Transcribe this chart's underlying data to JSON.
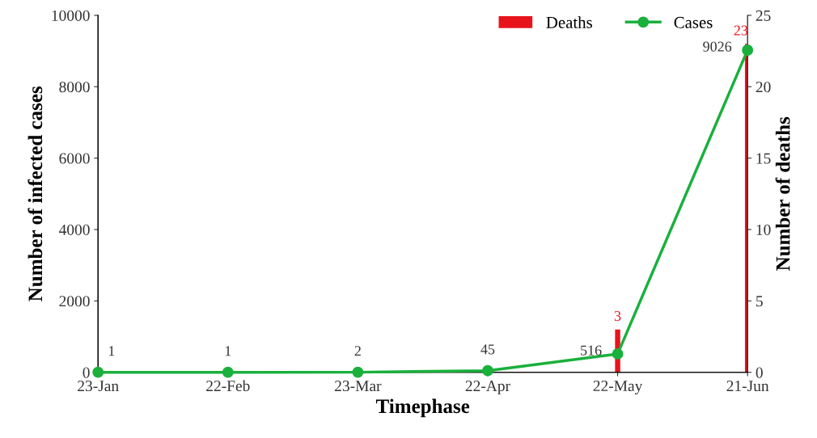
{
  "chart_data": {
    "type": "line",
    "xlabel": "Timephase",
    "ylabel": "Number of infected cases",
    "y2label": "Number of deaths",
    "categories": [
      "23-Jan",
      "22-Feb",
      "23-Mar",
      "22-Apr",
      "22-May",
      "21-Jun"
    ],
    "series": [
      {
        "name": "Deaths",
        "type": "bar",
        "axis": "y2",
        "color": "#e8141b",
        "values": [
          null,
          null,
          null,
          null,
          3,
          23
        ]
      },
      {
        "name": "Cases",
        "color": "#1ab03c",
        "marker": "circle",
        "values": [
          1,
          1,
          2,
          45,
          516,
          9026
        ]
      }
    ],
    "ylim": [
      0,
      10000
    ],
    "yticks": [
      0,
      2000,
      4000,
      6000,
      8000,
      10000
    ],
    "y2lim": [
      0,
      25
    ],
    "y2ticks": [
      0,
      5,
      10,
      15,
      20,
      25
    ],
    "data_labels": true,
    "legend": "top right",
    "grid": false
  }
}
